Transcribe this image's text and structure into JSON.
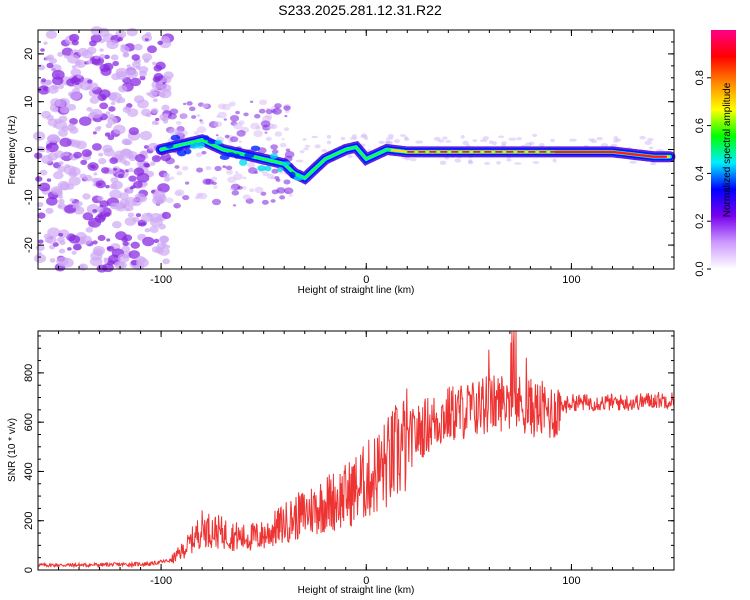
{
  "title": "S233.2025.281.12.31.R22",
  "colors": {
    "line": "#ee3333",
    "axis": "#000000"
  },
  "chart_data": [
    {
      "type": "heatmap",
      "xlabel": "Height of straight line (km)",
      "ylabel": "Frequency (Hz)",
      "xlim": [
        -160,
        150
      ],
      "ylim": [
        -25,
        25
      ],
      "xticks": [
        -100,
        0,
        100
      ],
      "yticks": [
        -20,
        -10,
        0,
        10,
        20
      ],
      "colorbar": {
        "label": "Normalized spectral amplitude",
        "range": [
          0,
          1
        ],
        "ticks": [
          0.0,
          0.2,
          0.4,
          0.6,
          0.8
        ],
        "colors": [
          "#ffffff",
          "#cc99ff",
          "#7700ee",
          "#0000ff",
          "#00eeff",
          "#00ff00",
          "#ffff00",
          "#ff8800",
          "#ff0000",
          "#ff0088"
        ]
      },
      "ridge": {
        "x": [
          -100,
          -90,
          -80,
          -70,
          -60,
          -50,
          -40,
          -35,
          -30,
          -25,
          -20,
          -15,
          -10,
          -5,
          0,
          5,
          10,
          20,
          40,
          60,
          80,
          100,
          120,
          140,
          148
        ],
        "y": [
          0,
          1,
          2,
          0,
          -1,
          -2,
          -3,
          -5,
          -6,
          -4,
          -2,
          -1,
          0,
          0.5,
          -2,
          -1,
          0,
          -0.5,
          -0.5,
          -0.5,
          -0.5,
          -0.5,
          -0.5,
          -1.5,
          -1.5
        ]
      }
    },
    {
      "type": "line",
      "xlabel": "Height of straight line (km)",
      "ylabel": "SNR (10 * v/v)",
      "xlim": [
        -160,
        150
      ],
      "ylim": [
        0,
        970
      ],
      "xticks": [
        -100,
        0,
        100
      ],
      "yticks": [
        0,
        200,
        400,
        600,
        800
      ],
      "series": [
        {
          "x": [
            -160,
            -140,
            -120,
            -105,
            -95,
            -88,
            -80,
            -70,
            -60,
            -50,
            -40,
            -30,
            -20,
            -10,
            0,
            10,
            20,
            30,
            40,
            50,
            60,
            70,
            80,
            90,
            100,
            110,
            120,
            130,
            140,
            150
          ],
          "values": [
            20,
            20,
            22,
            25,
            40,
            90,
            170,
            150,
            130,
            140,
            190,
            230,
            270,
            300,
            360,
            430,
            520,
            590,
            630,
            650,
            670,
            690,
            660,
            640,
            680,
            680,
            680,
            680,
            690,
            690
          ]
        }
      ]
    }
  ]
}
